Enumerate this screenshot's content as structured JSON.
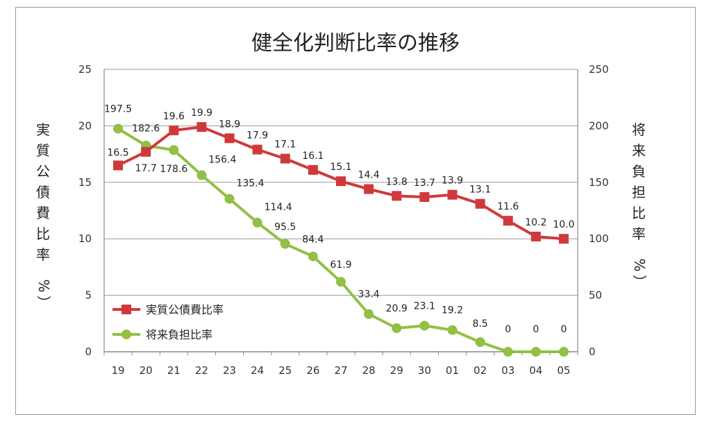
{
  "chart_data": {
    "type": "line",
    "title": "健全化判断比率の推移",
    "categories": [
      "19",
      "20",
      "21",
      "22",
      "23",
      "24",
      "25",
      "26",
      "27",
      "28",
      "29",
      "30",
      "01",
      "02",
      "03",
      "04",
      "05"
    ],
    "y_left": {
      "label": "実質公債費比率（%）",
      "label_chars": [
        "実",
        "質",
        "公",
        "債",
        "費",
        "比",
        "率"
      ],
      "unit_chars": [
        "%",
        "）"
      ],
      "range": [
        0,
        25
      ],
      "ticks": [
        "0",
        "5",
        "10",
        "15",
        "20",
        "25"
      ]
    },
    "y_right": {
      "label": "将来負担比率（%）",
      "label_chars": [
        "将",
        "来",
        "負",
        "担",
        "比",
        "率"
      ],
      "unit_chars": [
        "%",
        "）"
      ],
      "range": [
        0,
        250
      ],
      "ticks": [
        "0",
        "50",
        "100",
        "150",
        "200",
        "250"
      ]
    },
    "grid": true,
    "legend_position": "bottom-left",
    "series": [
      {
        "name": "実質公債費比率",
        "axis": "left",
        "color": "#d0393c",
        "marker": "square",
        "values": [
          16.5,
          17.7,
          19.6,
          19.9,
          18.9,
          17.9,
          17.1,
          16.1,
          15.1,
          14.4,
          13.8,
          13.7,
          13.9,
          13.1,
          11.6,
          10.2,
          10.0
        ],
        "labels": [
          "16.5",
          "17.7",
          "19.6",
          "19.9",
          "18.9",
          "17.9",
          "17.1",
          "16.1",
          "15.1",
          "14.4",
          "13.8",
          "13.7",
          "13.9",
          "13.1",
          "11.6",
          "10.2",
          "10.0"
        ]
      },
      {
        "name": "将来負担比率",
        "axis": "right",
        "color": "#92bf45",
        "marker": "circle",
        "values": [
          197.5,
          182.6,
          178.6,
          156.4,
          135.4,
          114.4,
          95.5,
          84.4,
          61.9,
          33.4,
          20.9,
          23.1,
          19.2,
          8.5,
          0,
          0,
          0
        ],
        "labels": [
          "197.5",
          "182.6",
          "178.6",
          "156.4",
          "135.4",
          "114.4",
          "95.5",
          "84.4",
          "61.9",
          "33.4",
          "20.9",
          "23.1",
          "19.2",
          "8.5",
          "0",
          "0",
          "0"
        ]
      }
    ]
  }
}
